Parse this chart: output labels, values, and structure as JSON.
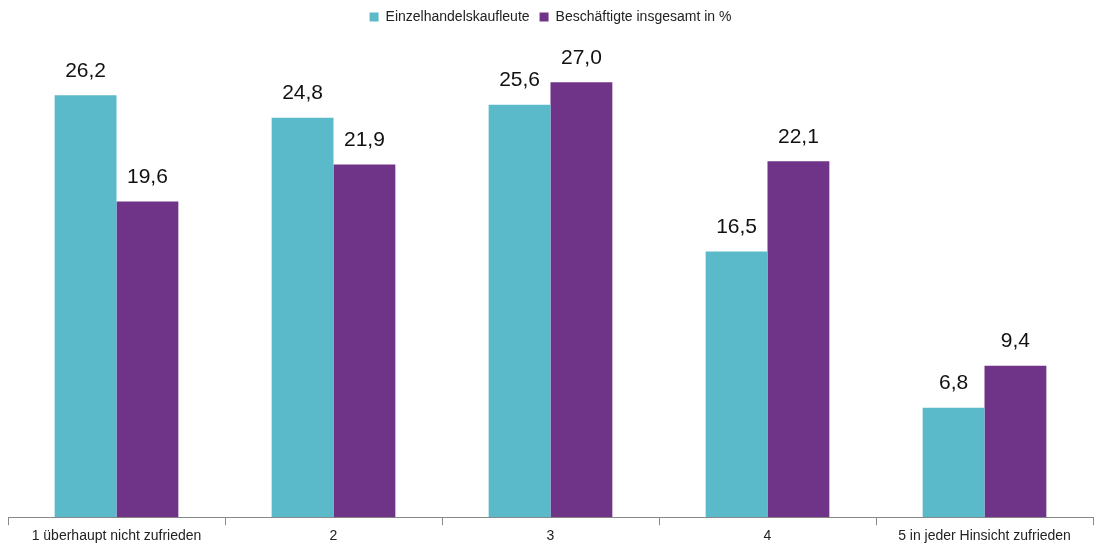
{
  "chart_data": {
    "type": "bar",
    "categories": [
      "1 überhaupt nicht zufrieden",
      "2",
      "3",
      "4",
      "5 in jeder Hinsicht zufrieden"
    ],
    "series": [
      {
        "name": "Einzelhandelskaufleute",
        "color": "#5bbac9",
        "values": [
          26.2,
          24.8,
          25.6,
          16.5,
          6.8
        ],
        "value_labels": [
          "26,2",
          "24,8",
          "25,6",
          "16,5",
          "6,8"
        ]
      },
      {
        "name": "Beschäftigte insgesamt in %",
        "color": "#6f3387",
        "values": [
          19.6,
          21.9,
          27.0,
          22.1,
          9.4
        ],
        "value_labels": [
          "19,6",
          "21,9",
          "27,0",
          "22,1",
          "9,4"
        ]
      }
    ],
    "legend": "top",
    "grid": false,
    "tick_labels": "x"
  }
}
